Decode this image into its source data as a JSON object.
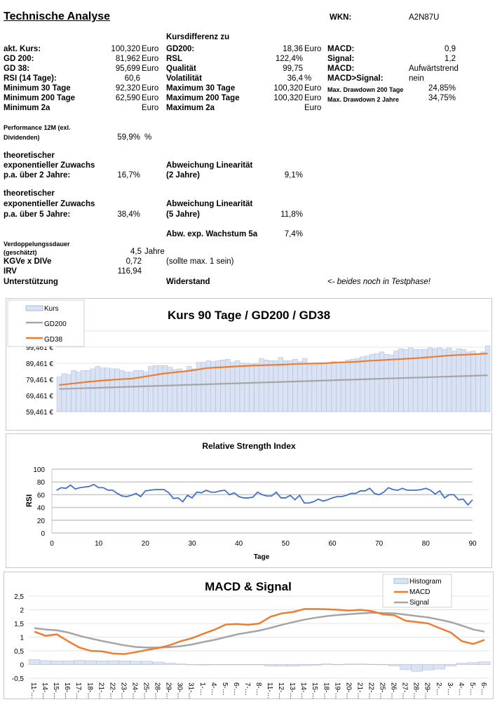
{
  "header": {
    "title": "Technische Analyse",
    "wkn_label": "WKN:",
    "wkn": "A2N87U"
  },
  "kursdiff_label": "Kursdifferenz zu",
  "rows": [
    {
      "l1": "akt. Kurs:",
      "v1": "100,320",
      "u1": "Euro",
      "l2": "GD200:",
      "v2": "18,36",
      "u2": "Euro",
      "l3": "MACD:",
      "v3": "0,9"
    },
    {
      "l1": "GD 200:",
      "v1": "81,962",
      "u1": "Euro",
      "l2": "RSL",
      "v2": "122,4%",
      "u2": "",
      "l3": "Signal:",
      "v3": "1,2"
    },
    {
      "l1": "GD 38:",
      "v1": "95,699",
      "u1": "Euro",
      "l2": "Qualität",
      "v2": "99,75",
      "u2": "",
      "l3": "MACD:",
      "v3": "Aufwärtstrend"
    },
    {
      "l1": "RSI (14 Tage):",
      "v1": "60,6",
      "u1": "",
      "l2": "Volatilität",
      "v2": "36,4",
      "u2": "%",
      "l3": "MACD>Signal:",
      "v3": "nein"
    },
    {
      "l1": "Minimum 30 Tage",
      "v1": "92,320",
      "u1": "Euro",
      "l2": "Maximum 30 Tage",
      "v2": "100,320",
      "u2": "Euro",
      "l3": "Max. Drawdown 200 Tage",
      "v3": "24,85%"
    },
    {
      "l1": "Minimum 200 Tage",
      "v1": "62,590",
      "u1": "Euro",
      "l2": "Maximum 200 Tage",
      "v2": "100,320",
      "u2": "Euro",
      "l3": "Max. Drawdown 2 Jahre",
      "v3": "34,75%"
    },
    {
      "l1": "Minimum 2a",
      "v1": "",
      "u1": "Euro",
      "l2": "Maximum 2a",
      "v2": "",
      "u2": "Euro",
      "l3": "",
      "v3": ""
    }
  ],
  "perf": {
    "l1": "Performance 12M (exl.",
    "l2": "Dividenden)",
    "value": "59,9%",
    "unit": "%"
  },
  "growth2": {
    "l1": "theoretischer",
    "l2": "exponentieller Zuwachs",
    "l3": "p.a. über 2 Jahre:",
    "value": "16,7%",
    "dev_l1": "Abweichung Linearität",
    "dev_l2": "(2 Jahre)",
    "dev_value": "9,1%"
  },
  "growth5": {
    "l1": "theoretischer",
    "l2": "exponentieller Zuwachs",
    "l3": "p.a. über 5 Jahre:",
    "value": "38,4%",
    "dev_l1": "Abweichung Linearität",
    "dev_l2": "(5 Jahre)",
    "dev_value": "11,8%"
  },
  "abw": {
    "label": "Abw. exp. Wachstum 5a",
    "value": "7,4%"
  },
  "verdopp": {
    "l1": "Verdoppelungssdauer",
    "l2": "(geschätzt)",
    "value": "4,5",
    "unit": "Jahre"
  },
  "kgve": {
    "label": "KGVe x DIVe",
    "value": "0,72",
    "note": "(sollte max. 1 sein)"
  },
  "irv": {
    "label": "IRV",
    "value": "116,94"
  },
  "support": {
    "label": "Unterstützung",
    "resist": "Widerstand",
    "note": "<- beides noch in Testphase!"
  },
  "chart_data": [
    {
      "type": "bar",
      "title": "Kurs 90 Tage / GD200 / GD38",
      "ylim": [
        59.461,
        109.461
      ],
      "yticks": [
        "59,461 €",
        "69,461 €",
        "79,461 €",
        "89,461 €",
        "99,461 €"
      ],
      "grid": true,
      "legend": "top-left",
      "series": [
        {
          "name": "Kurs",
          "type": "bar",
          "color": "#dae3f3",
          "values": [
            81,
            83,
            82.5,
            85,
            84,
            85,
            85,
            86,
            87.5,
            86.5,
            86.5,
            86,
            86,
            85,
            84,
            84,
            85,
            85,
            84,
            87.5,
            88,
            88,
            88,
            87,
            85.5,
            86,
            84,
            87.5,
            86,
            90,
            90,
            91,
            90.5,
            91,
            91.5,
            92,
            90,
            91,
            89.5,
            89.5,
            89,
            89.5,
            92.5,
            91.5,
            91,
            91,
            93,
            91,
            91,
            92,
            90.5,
            92.5,
            88.5,
            88.5,
            89,
            89.5,
            89.5,
            90.5,
            90,
            90,
            91.5,
            92,
            92.5,
            93.5,
            94,
            95,
            95.5,
            96.5,
            95,
            94.5,
            97,
            98.5,
            98,
            99,
            98,
            98,
            98,
            99,
            98.5,
            99,
            98,
            99,
            97,
            98.5,
            98,
            96.5,
            97,
            95,
            96.5,
            100.3
          ]
        },
        {
          "name": "GD200",
          "type": "line",
          "color": "#a5a5a5",
          "start": 73.5,
          "end": 82
        },
        {
          "name": "GD38",
          "type": "line",
          "color": "#ed7d31",
          "values": [
            76,
            77,
            78,
            78.8,
            79.5,
            80,
            81.5,
            83,
            84,
            85,
            86.5,
            87,
            87.5,
            88,
            88.3,
            88.6,
            89,
            89.3,
            89.5,
            90,
            90.3,
            91,
            91.5,
            92,
            92.5,
            93.2,
            94,
            94.6,
            95,
            95.5
          ]
        }
      ]
    },
    {
      "type": "line",
      "title": "Relative Strength Index",
      "xlabel": "Tage",
      "ylabel": "RSI",
      "xlim": [
        0,
        90
      ],
      "ylim": [
        0,
        100
      ],
      "xticks": [
        0,
        10,
        20,
        30,
        40,
        50,
        60,
        70,
        80,
        90
      ],
      "yticks": [
        0,
        20,
        40,
        60,
        80,
        100
      ],
      "grid": true,
      "color": "#4472c4",
      "values": [
        67,
        71,
        70,
        75,
        69,
        71,
        72,
        73,
        76,
        71,
        71,
        67,
        67,
        62,
        58,
        57,
        59,
        62,
        57,
        66,
        67,
        68,
        68,
        68,
        63,
        54,
        55,
        49,
        59,
        55,
        64,
        63,
        67,
        64,
        64,
        66,
        67,
        60,
        63,
        57,
        55,
        55,
        56,
        64,
        60,
        58,
        58,
        64,
        55,
        55,
        59,
        52,
        59,
        47,
        47,
        49,
        53,
        50,
        52,
        55,
        57,
        57,
        59,
        62,
        62,
        66,
        66,
        70,
        62,
        60,
        64,
        71,
        68,
        67,
        70,
        67,
        67,
        67,
        68,
        70,
        67,
        61,
        66,
        55,
        60,
        60,
        52,
        53,
        44,
        52
      ]
    },
    {
      "type": "line",
      "title": "MACD & Signal",
      "ylim": [
        -0.5,
        2.5
      ],
      "yticks": [
        "-0,5",
        "0",
        "0,5",
        "1",
        "1,5",
        "2",
        "2,5"
      ],
      "grid": true,
      "legend": "top-right",
      "categories": [
        "11-…",
        "14-…",
        "15-…",
        "16-…",
        "17-…",
        "18-…",
        "21-…",
        "22-…",
        "23-…",
        "24-…",
        "25-…",
        "28-…",
        "29-…",
        "30-…",
        "31-…",
        "1-…",
        "4-…",
        "5-…",
        "6-…",
        "7-…",
        "8-…",
        "11-…",
        "12-…",
        "13-…",
        "14-…",
        "15-…",
        "18-…",
        "19-…",
        "20-…",
        "21-…",
        "22-…",
        "25-…",
        "26-…",
        "27-…",
        "28-…",
        "29-…",
        "2-…",
        "3-…",
        "4-…",
        "5-…",
        "6-…"
      ],
      "series": [
        {
          "name": "Histogram",
          "type": "bar",
          "color": "#dae3f3",
          "values": [
            0.18,
            0.14,
            0.13,
            0.13,
            0.15,
            0.14,
            0.13,
            0.14,
            0.13,
            0.12,
            0.12,
            0.09,
            0.05,
            0.02,
            0,
            -0.02,
            0,
            0,
            0,
            0,
            0,
            -0.06,
            -0.06,
            -0.06,
            -0.04,
            -0.03,
            0.02,
            0,
            0.02,
            0.02,
            0.01,
            0,
            -0.05,
            -0.19,
            -0.25,
            -0.2,
            -0.17,
            -0.06,
            0.05,
            0.07,
            0.1
          ]
        },
        {
          "name": "MACD",
          "type": "line",
          "color": "#ed7d31",
          "values": [
            1.2,
            1.05,
            1.1,
            0.85,
            0.62,
            0.5,
            0.48,
            0.4,
            0.38,
            0.45,
            0.53,
            0.6,
            0.7,
            0.85,
            0.96,
            1.12,
            1.27,
            1.46,
            1.48,
            1.45,
            1.5,
            1.75,
            1.87,
            1.92,
            2.03,
            2.03,
            2.02,
            2.0,
            1.97,
            2.0,
            1.95,
            1.83,
            1.8,
            1.6,
            1.55,
            1.5,
            1.33,
            1.17,
            0.85,
            0.75,
            0.9
          ]
        },
        {
          "name": "Signal",
          "type": "line",
          "color": "#a5a5a5",
          "values": [
            1.33,
            1.28,
            1.25,
            1.17,
            1.05,
            0.95,
            0.86,
            0.78,
            0.7,
            0.64,
            0.62,
            0.62,
            0.63,
            0.67,
            0.73,
            0.82,
            0.9,
            1.0,
            1.1,
            1.17,
            1.24,
            1.34,
            1.45,
            1.55,
            1.64,
            1.71,
            1.77,
            1.81,
            1.84,
            1.87,
            1.89,
            1.88,
            1.87,
            1.82,
            1.77,
            1.72,
            1.64,
            1.55,
            1.42,
            1.28,
            1.2
          ]
        }
      ]
    }
  ]
}
